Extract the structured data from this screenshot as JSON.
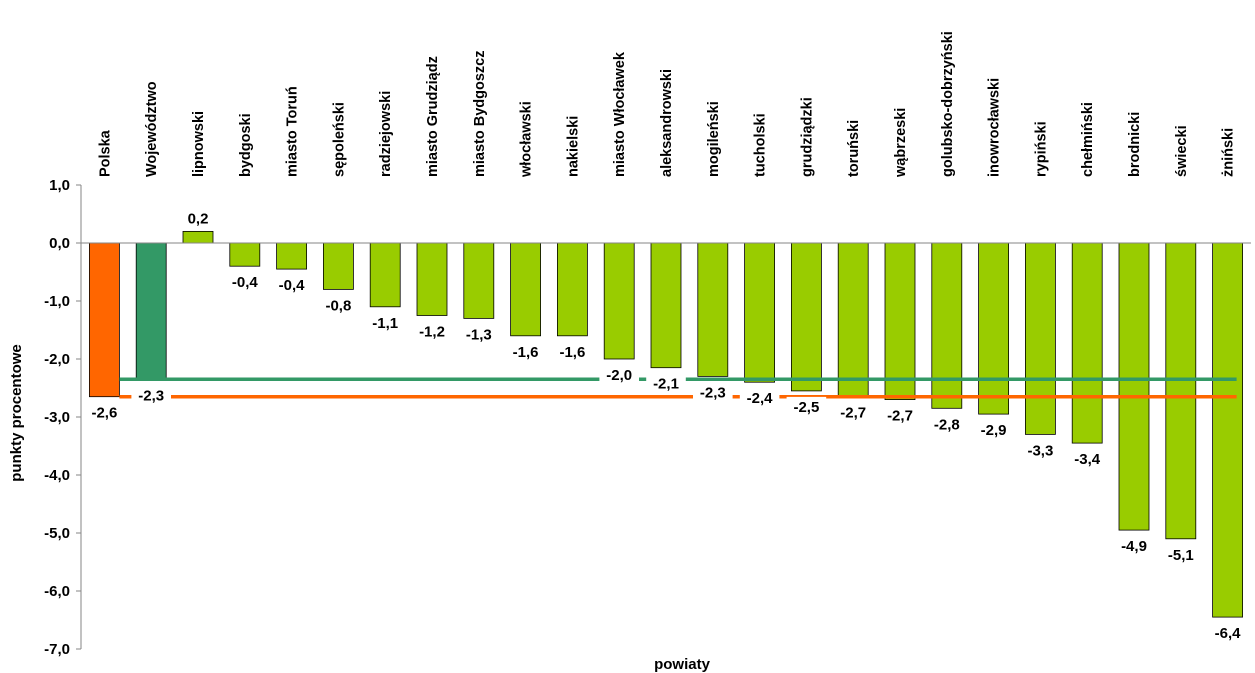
{
  "chart_data": {
    "type": "bar",
    "categories": [
      "Polska",
      "Województwo",
      "lipnowski",
      "bydgoski",
      "miasto Toruń",
      "sępoleński",
      "radziejowski",
      "miasto Grudziądz",
      "miasto Bydgoszcz",
      "włocławski",
      "nakielski",
      "miasto Włocławek",
      "aleksandrowski",
      "mogileński",
      "tucholski",
      "grudziądzki",
      "toruński",
      "wąbrzeski",
      "golubsko-dobrzyński",
      "inowrocławski",
      "rypiński",
      "chełmiński",
      "brodnicki",
      "świecki",
      "żniński"
    ],
    "values": [
      -2.65,
      -2.35,
      0.2,
      -0.4,
      -0.45,
      -0.8,
      -1.1,
      -1.25,
      -1.3,
      -1.6,
      -1.6,
      -2.0,
      -2.15,
      -2.3,
      -2.4,
      -2.55,
      -2.65,
      -2.7,
      -2.85,
      -2.95,
      -3.3,
      -3.45,
      -4.95,
      -5.1,
      -6.45
    ],
    "data_labels": [
      "-2,6",
      "-2,3",
      "0,2",
      "-0,4",
      "-0,4",
      "-0,8",
      "-1,1",
      "-1,2",
      "-1,3",
      "-1,6",
      "-1,6",
      "-2,0",
      "-2,1",
      "-2,3",
      "-2,4",
      "-2,5",
      "-2,7",
      "-2,7",
      "-2,8",
      "-2,9",
      "-3,3",
      "-3,4",
      "-4,9",
      "-5,1",
      "-6,4"
    ],
    "bar_roles": [
      "country",
      "voivodeship",
      "district",
      "district",
      "district",
      "district",
      "district",
      "district",
      "district",
      "district",
      "district",
      "district",
      "district",
      "district",
      "district",
      "district",
      "district",
      "district",
      "district",
      "district",
      "district",
      "district",
      "district",
      "district",
      "district"
    ],
    "colors": {
      "country": "#ff6600",
      "voivodeship": "#339966",
      "district": "#99cc00",
      "country_line": "#ff6600",
      "voivodeship_line": "#339966"
    },
    "reference_lines": [
      {
        "role": "voivodeship",
        "value": -2.35
      },
      {
        "role": "country",
        "value": -2.65
      }
    ],
    "ylim": [
      -7.0,
      1.0
    ],
    "yticks": [
      1.0,
      0.0,
      -1.0,
      -2.0,
      -3.0,
      -4.0,
      -5.0,
      -6.0,
      -7.0
    ],
    "ytick_labels": [
      "1,0",
      "0,0",
      "-1,0",
      "-2,0",
      "-3,0",
      "-4,0",
      "-5,0",
      "-6,0",
      "-7,0"
    ],
    "xlabel": "powiaty",
    "ylabel": "punkty procentowe",
    "title": "",
    "grid": false,
    "legend": "none"
  }
}
